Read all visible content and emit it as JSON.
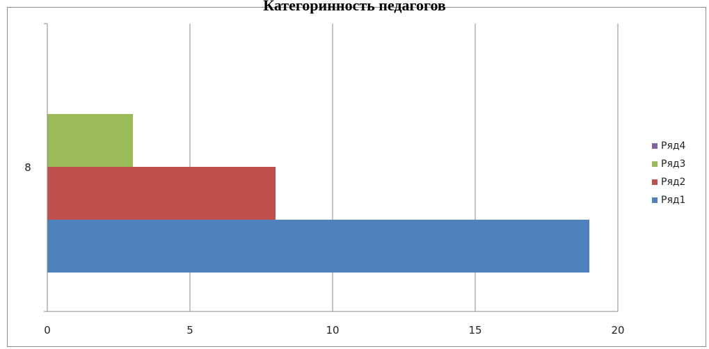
{
  "chart_data": {
    "type": "bar",
    "orientation": "horizontal",
    "title": "Категоринность педагогов",
    "categories": [
      "8"
    ],
    "xlim": [
      0,
      20
    ],
    "x_ticks": [
      "0",
      "5",
      "10",
      "15",
      "20"
    ],
    "grid": "vertical",
    "legend_position": "right",
    "series": [
      {
        "name": "Ряд1",
        "values": [
          19
        ],
        "color": "#4f81bd"
      },
      {
        "name": "Ряд2",
        "values": [
          8
        ],
        "color": "#c0504d"
      },
      {
        "name": "Ряд3",
        "values": [
          3
        ],
        "color": "#9bbb59"
      },
      {
        "name": "Ряд4",
        "values": [
          0
        ],
        "color": "#8064a2"
      }
    ]
  }
}
